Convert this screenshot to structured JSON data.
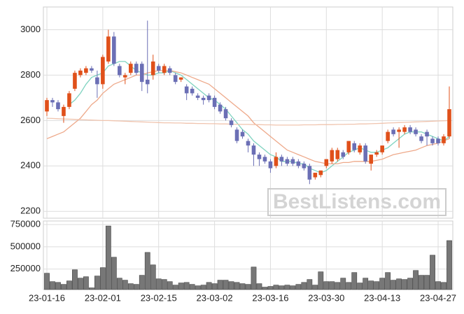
{
  "chart_data": {
    "type": "candlestick",
    "watermark": "BestListens.com",
    "categories": [
      "23-01-16",
      null,
      null,
      null,
      null,
      null,
      null,
      null,
      null,
      null,
      "23-02-01",
      null,
      null,
      null,
      null,
      null,
      null,
      null,
      null,
      null,
      "23-02-15",
      null,
      null,
      null,
      null,
      null,
      null,
      null,
      null,
      null,
      "23-03-02",
      null,
      null,
      null,
      null,
      null,
      null,
      null,
      null,
      null,
      "23-03-16",
      null,
      null,
      null,
      null,
      null,
      null,
      null,
      null,
      null,
      "23-03-30",
      null,
      null,
      null,
      null,
      null,
      null,
      null,
      null,
      null,
      "23-04-13",
      null,
      null,
      null,
      null,
      null,
      null,
      null,
      null,
      null,
      "23-04-27",
      null,
      null
    ],
    "open": [
      2640,
      2690,
      2680,
      2620,
      2660,
      2740,
      2800,
      2810,
      2830,
      2790,
      2760,
      2860,
      2970,
      2840,
      2790,
      2810,
      2850,
      2850,
      2780,
      2800,
      2840,
      2810,
      2830,
      2800,
      2780,
      2750,
      2740,
      2710,
      2700,
      2710,
      2700,
      2670,
      2650,
      2600,
      2560,
      2550,
      2510,
      2490,
      2450,
      2440,
      2420,
      2400,
      2440,
      2430,
      2430,
      2420,
      2410,
      2400,
      2350,
      2360,
      2400,
      2420,
      2430,
      2460,
      2460,
      2500,
      2460,
      2490,
      2410,
      2450,
      2460,
      2510,
      2560,
      2550,
      2550,
      2570,
      2560,
      2530,
      2550,
      2520,
      2520,
      2500,
      2530
    ],
    "high": [
      2700,
      2700,
      2690,
      2670,
      2730,
      2820,
      2830,
      2840,
      2840,
      2820,
      2890,
      3000,
      2990,
      2850,
      2810,
      2860,
      2860,
      2860,
      3040,
      2890,
      2850,
      2850,
      2840,
      2810,
      2790,
      2760,
      2750,
      2720,
      2710,
      2720,
      2710,
      2680,
      2660,
      2610,
      2570,
      2560,
      2520,
      2500,
      2460,
      2450,
      2430,
      2460,
      2450,
      2440,
      2440,
      2430,
      2420,
      2410,
      2370,
      2380,
      2430,
      2480,
      2480,
      2470,
      2510,
      2510,
      2500,
      2500,
      2450,
      2470,
      2490,
      2560,
      2570,
      2570,
      2580,
      2580,
      2570,
      2540,
      2560,
      2530,
      2530,
      2540,
      2750
    ],
    "low": [
      2620,
      2660,
      2640,
      2590,
      2650,
      2730,
      2790,
      2800,
      2810,
      2700,
      2740,
      2850,
      2840,
      2790,
      2760,
      2800,
      2800,
      2730,
      2720,
      2780,
      2810,
      2800,
      2800,
      2760,
      2770,
      2690,
      2710,
      2690,
      2670,
      2680,
      2650,
      2630,
      2600,
      2570,
      2500,
      2520,
      2460,
      2400,
      2400,
      2410,
      2370,
      2390,
      2400,
      2400,
      2400,
      2390,
      2380,
      2320,
      2340,
      2350,
      2390,
      2410,
      2420,
      2430,
      2450,
      2460,
      2450,
      2410,
      2380,
      2440,
      2450,
      2500,
      2530,
      2480,
      2540,
      2540,
      2530,
      2500,
      2490,
      2490,
      2490,
      2490,
      2520
    ],
    "close": [
      2690,
      2680,
      2650,
      2660,
      2720,
      2810,
      2820,
      2830,
      2820,
      2760,
      2880,
      2970,
      2850,
      2800,
      2800,
      2850,
      2810,
      2770,
      2760,
      2860,
      2820,
      2840,
      2810,
      2770,
      2790,
      2720,
      2720,
      2700,
      2690,
      2690,
      2660,
      2640,
      2610,
      2580,
      2510,
      2530,
      2490,
      2450,
      2430,
      2420,
      2390,
      2440,
      2420,
      2410,
      2410,
      2400,
      2390,
      2340,
      2370,
      2380,
      2430,
      2470,
      2470,
      2440,
      2510,
      2470,
      2490,
      2420,
      2450,
      2460,
      2490,
      2550,
      2540,
      2560,
      2570,
      2550,
      2540,
      2510,
      2530,
      2500,
      2500,
      2530,
      2650
    ],
    "up_color": "#e0501a",
    "down_color": "#6b6fb5",
    "series": [
      {
        "color": "#7fd3c0",
        "values": [
          null,
          null,
          null,
          null,
          2670,
          2690,
          2720,
          2760,
          2790,
          2800,
          2810,
          2840,
          2850,
          2860,
          2860,
          2840,
          2820,
          2810,
          2800,
          2800,
          2810,
          2810,
          2820,
          2810,
          2800,
          2780,
          2760,
          2740,
          2720,
          2700,
          2690,
          2670,
          2650,
          2620,
          2590,
          2560,
          2540,
          2510,
          2490,
          2470,
          2450,
          2440,
          2420,
          2420,
          2420,
          2410,
          2410,
          2390,
          2380,
          2370,
          2380,
          2400,
          2420,
          2440,
          2460,
          2470,
          2480,
          2470,
          2460,
          2460,
          2470,
          2480,
          2500,
          2520,
          2540,
          2550,
          2550,
          2550,
          2540,
          2530,
          2520,
          2510,
          2530
        ]
      },
      {
        "color": "#eea98a",
        "values": [
          2520,
          2530,
          2540,
          2550,
          2570,
          2590,
          2610,
          2640,
          2670,
          2690,
          2720,
          2740,
          2760,
          2770,
          2780,
          2790,
          2800,
          2800,
          2810,
          2815,
          2820,
          2820,
          2820,
          2815,
          2810,
          2800,
          2790,
          2780,
          2770,
          2760,
          2740,
          2720,
          2700,
          2680,
          2660,
          2640,
          2620,
          2590,
          2570,
          2550,
          2530,
          2510,
          2490,
          2470,
          2460,
          2450,
          2440,
          2430,
          2420,
          2415,
          2410,
          2410,
          2410,
          2415,
          2415,
          2420,
          2420,
          2420,
          2420,
          2425,
          2430,
          2440,
          2450,
          2455,
          2460,
          2465,
          2470,
          2480,
          2490,
          2495,
          2500,
          2510,
          2520
        ]
      },
      {
        "color": "#f0c4ae",
        "values": [
          2610,
          2609,
          2608,
          2607,
          2606,
          2605,
          2604,
          2603,
          2602,
          2601,
          2600,
          2600,
          2599,
          2598,
          2597,
          2596,
          2595,
          2594,
          2593,
          2592,
          2591,
          2590,
          2590,
          2589,
          2589,
          2588,
          2588,
          2587,
          2587,
          2586,
          2586,
          2585,
          2585,
          2584,
          2584,
          2583,
          2583,
          2582,
          2582,
          2581,
          2581,
          2580,
          2580,
          2580,
          2580,
          2580,
          2581,
          2581,
          2581,
          2582,
          2582,
          2582,
          2583,
          2583,
          2584,
          2584,
          2585,
          2585,
          2586,
          2587,
          2588,
          2589,
          2590,
          2591,
          2592,
          2593,
          2594,
          2595,
          2596,
          2597,
          2598,
          2599,
          2600
        ]
      }
    ],
    "ylim": [
      2170,
      3100
    ],
    "yticks": [
      2200,
      2400,
      2600,
      2800,
      3000
    ],
    "grid": true,
    "volume": {
      "color": "#777777",
      "values": [
        203000,
        109000,
        100000,
        78000,
        117000,
        242000,
        148000,
        164000,
        39000,
        172000,
        266000,
        734000,
        383000,
        148000,
        125000,
        86000,
        78000,
        180000,
        437000,
        297000,
        140000,
        133000,
        109000,
        70000,
        94000,
        100000,
        78000,
        62000,
        70000,
        100000,
        86000,
        125000,
        125000,
        109000,
        100000,
        86000,
        78000,
        273000,
        86000,
        47000,
        55000,
        70000,
        62000,
        70000,
        62000,
        78000,
        100000,
        133000,
        70000,
        219000,
        109000,
        109000,
        100000,
        148000,
        100000,
        211000,
        94000,
        148000,
        117000,
        109000,
        148000,
        211000,
        125000,
        140000,
        133000,
        148000,
        234000,
        180000,
        180000,
        406000,
        109000,
        100000,
        570000
      ],
      "ylim": [
        20000,
        790000
      ],
      "yticks": [
        250000,
        500000,
        750000
      ]
    }
  }
}
